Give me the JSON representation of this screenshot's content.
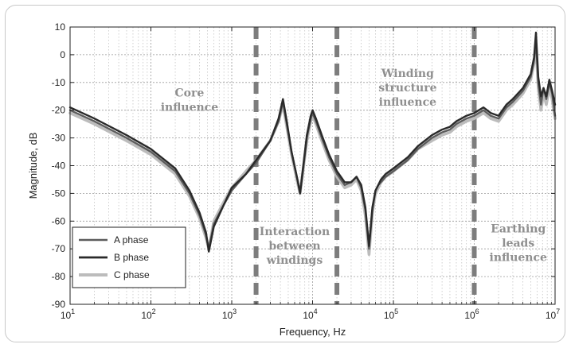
{
  "chart_data": {
    "type": "line",
    "title": "",
    "xlabel": "Frequency, Hz",
    "ylabel": "Magnitude, dB",
    "xscale": "log",
    "xlim": [
      10,
      10000000
    ],
    "ylim": [
      -90,
      10
    ],
    "x_ticks": [
      {
        "value": 10,
        "base": "10",
        "exp": "1"
      },
      {
        "value": 100,
        "base": "10",
        "exp": "2"
      },
      {
        "value": 1000,
        "base": "10",
        "exp": "3"
      },
      {
        "value": 10000,
        "base": "10",
        "exp": "4"
      },
      {
        "value": 100000,
        "base": "10",
        "exp": "5"
      },
      {
        "value": 1000000,
        "base": "10",
        "exp": "6"
      },
      {
        "value": 10000000,
        "base": "10",
        "exp": "7"
      }
    ],
    "y_ticks": [
      "10",
      "0",
      "-10",
      "-20",
      "-30",
      "-40",
      "-50",
      "-60",
      "-70",
      "-80",
      "-90"
    ],
    "grid": true,
    "legend_position": "bottom-left",
    "series": [
      {
        "name": "A phase",
        "color": "#5c5c5c",
        "x": [
          10,
          20,
          50,
          100,
          200,
          300,
          400,
          480,
          520,
          600,
          800,
          1000,
          1500,
          2000,
          3000,
          3800,
          4300,
          4800,
          5500,
          6500,
          7000,
          7600,
          8500,
          9500,
          10000,
          11000,
          13000,
          16000,
          20000,
          25000,
          30000,
          35000,
          40000,
          45000,
          50000,
          55000,
          60000,
          65000,
          70000,
          80000,
          100000,
          150000,
          200000,
          300000,
          400000,
          500000,
          600000,
          800000,
          1000000,
          1300000,
          1600000,
          2000000,
          2500000,
          3000000,
          4000000,
          5000000,
          5500000,
          5800000,
          6200000,
          6700000,
          7200000,
          7800000,
          8500000,
          9200000,
          10000000
        ],
        "y": [
          -20,
          -24,
          -30,
          -35,
          -42,
          -50,
          -58,
          -65,
          -70,
          -61,
          -54,
          -49,
          -43,
          -39,
          -31,
          -24,
          -17,
          -25,
          -35,
          -45,
          -50,
          -42,
          -30,
          -23,
          -21,
          -24,
          -30,
          -37,
          -43,
          -47,
          -46,
          -44,
          -48,
          -56,
          -70,
          -56,
          -49,
          -47,
          -46,
          -44,
          -42,
          -38,
          -34,
          -30,
          -28,
          -27,
          -25,
          -23,
          -22,
          -20,
          -22,
          -23,
          -19,
          -17,
          -13,
          -8,
          -2,
          5,
          -10,
          -18,
          -12,
          -16,
          -10,
          -14,
          -22
        ]
      },
      {
        "name": "B phase",
        "color": "#2a2a2a",
        "x": [
          10,
          20,
          50,
          100,
          200,
          300,
          400,
          480,
          520,
          600,
          800,
          1000,
          1500,
          2000,
          3000,
          3800,
          4300,
          4800,
          5500,
          6500,
          7000,
          7600,
          8500,
          9500,
          10000,
          11000,
          13000,
          16000,
          20000,
          25000,
          30000,
          35000,
          40000,
          45000,
          50000,
          55000,
          60000,
          65000,
          70000,
          80000,
          100000,
          150000,
          200000,
          300000,
          400000,
          500000,
          600000,
          800000,
          1000000,
          1300000,
          1600000,
          2000000,
          2500000,
          3000000,
          4000000,
          5000000,
          5500000,
          5800000,
          6200000,
          6700000,
          7200000,
          7800000,
          8500000,
          9200000,
          10000000
        ],
        "y": [
          -19,
          -23,
          -29,
          -34,
          -41,
          -49,
          -57,
          -64,
          -71,
          -62,
          -54,
          -48,
          -43,
          -38,
          -31,
          -23,
          -16,
          -24,
          -35,
          -45,
          -50,
          -41,
          -29,
          -22,
          -20,
          -23,
          -29,
          -36,
          -42,
          -46,
          -46,
          -44,
          -47,
          -55,
          -69,
          -55,
          -49,
          -47,
          -45,
          -43,
          -41,
          -37,
          -33,
          -29,
          -27,
          -26,
          -24,
          -22,
          -21,
          -19,
          -21,
          -22,
          -18,
          -16,
          -12,
          -7,
          -1,
          8,
          -8,
          -15,
          -12,
          -15,
          -9,
          -13,
          -18
        ]
      },
      {
        "name": "C phase",
        "color": "#bcbcbc",
        "x": [
          10,
          20,
          50,
          100,
          200,
          300,
          400,
          480,
          520,
          600,
          800,
          1000,
          1500,
          2000,
          3000,
          3800,
          4300,
          4800,
          5500,
          6500,
          7000,
          7600,
          8500,
          9500,
          10000,
          11000,
          13000,
          16000,
          20000,
          25000,
          30000,
          35000,
          40000,
          45000,
          50000,
          55000,
          60000,
          65000,
          70000,
          80000,
          100000,
          150000,
          200000,
          300000,
          400000,
          500000,
          600000,
          800000,
          1000000,
          1300000,
          1600000,
          2000000,
          2500000,
          3000000,
          4000000,
          5000000,
          5500000,
          5800000,
          6200000,
          6700000,
          7200000,
          7800000,
          8500000,
          9200000,
          10000000
        ],
        "y": [
          -21,
          -25,
          -31,
          -36,
          -43,
          -51,
          -59,
          -66,
          -70,
          -60,
          -53,
          -48,
          -42,
          -38,
          -31,
          -24,
          -18,
          -26,
          -36,
          -46,
          -50,
          -42,
          -31,
          -24,
          -22,
          -25,
          -31,
          -38,
          -44,
          -48,
          -47,
          -45,
          -49,
          -58,
          -72,
          -57,
          -50,
          -48,
          -46,
          -44,
          -42,
          -38,
          -34,
          -31,
          -29,
          -28,
          -26,
          -24,
          -23,
          -21,
          -23,
          -24,
          -20,
          -18,
          -14,
          -9,
          -3,
          3,
          -12,
          -20,
          -14,
          -18,
          -12,
          -16,
          -23
        ]
      }
    ],
    "region_dividers": [
      2000,
      20000,
      1000000
    ],
    "annotations": [
      {
        "lines": [
          "Core",
          "influence"
        ],
        "x": 300,
        "y": -15
      },
      {
        "lines": [
          "Interaction",
          "between",
          "windings"
        ],
        "x": 6000,
        "y": -65
      },
      {
        "lines": [
          "Winding",
          "structure",
          "influence"
        ],
        "x": 150000,
        "y": -8
      },
      {
        "lines": [
          "Earthing",
          "leads",
          "influence"
        ],
        "x": 3500000,
        "y": -64
      }
    ]
  }
}
